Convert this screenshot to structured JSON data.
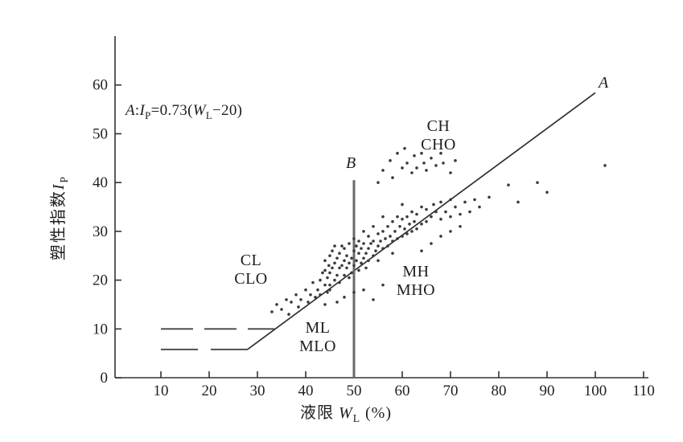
{
  "labels": {
    "equation_parts": [
      "A",
      ":",
      "I",
      "P",
      "=0.73(",
      "W",
      "L",
      "−20)"
    ],
    "a": "A",
    "b": "B",
    "zones_ch": [
      "CH",
      "CHO"
    ],
    "zones_cl": [
      "CL",
      "CLO"
    ],
    "zones_mh": [
      "MH",
      "MHO"
    ],
    "zones_ml": [
      "ML",
      "MLO"
    ],
    "xlabel": [
      "液限 ",
      "W",
      "L",
      " (%)"
    ],
    "ylabel": [
      "塑性指数",
      "I",
      "P"
    ]
  },
  "chart_data": {
    "type": "scatter",
    "title": "",
    "xlabel": "液限 WL (%)",
    "ylabel": "塑性指数 IP",
    "xlim": [
      0,
      115
    ],
    "ylim": [
      0,
      70
    ],
    "x_ticks": [
      10,
      20,
      30,
      40,
      50,
      60,
      70,
      80,
      90,
      100,
      110
    ],
    "y_ticks": [
      0,
      10,
      20,
      30,
      40,
      50,
      60
    ],
    "grid": false,
    "a_line": {
      "label": "A",
      "equation": "IP = 0.73 (WL - 20)",
      "slope": 0.73,
      "offset": 20,
      "wl_start": 28,
      "wl_end": 100
    },
    "b_line": {
      "label": "B",
      "wl": 50,
      "ip_bottom": 0,
      "ip_top": 40.5
    },
    "dashed_boundary": {
      "ip": 10,
      "wl_from": 10,
      "wl_to": 33.5
    },
    "lower_boundary": {
      "ip": 5.8,
      "wl_from": 10,
      "wl_to": 28
    },
    "zones": [
      {
        "label": "CH/CHO",
        "wl": 66,
        "ip": 49
      },
      {
        "label": "CL/CLO",
        "wl": 28,
        "ip": 22.5
      },
      {
        "label": "MH/MHO",
        "wl": 62,
        "ip": 20.5
      },
      {
        "label": "ML/MLO",
        "wl": 42,
        "ip": 9
      }
    ],
    "points": [
      [
        33,
        13.5
      ],
      [
        34,
        15
      ],
      [
        35,
        14
      ],
      [
        36,
        16
      ],
      [
        36.5,
        13
      ],
      [
        37,
        15.5
      ],
      [
        38,
        17
      ],
      [
        38.5,
        14.5
      ],
      [
        39,
        16
      ],
      [
        40,
        18
      ],
      [
        40.5,
        15.5
      ],
      [
        41,
        17
      ],
      [
        41.5,
        19.5
      ],
      [
        42,
        16.5
      ],
      [
        42.5,
        18
      ],
      [
        43,
        20
      ],
      [
        43,
        17
      ],
      [
        43.5,
        21.5
      ],
      [
        44,
        19
      ],
      [
        44,
        22
      ],
      [
        44,
        24
      ],
      [
        44.5,
        17.5
      ],
      [
        44.5,
        20.5
      ],
      [
        44.8,
        23
      ],
      [
        45,
        19
      ],
      [
        45,
        21.5
      ],
      [
        45,
        25
      ],
      [
        45,
        18
      ],
      [
        45.5,
        22.5
      ],
      [
        45.5,
        26
      ],
      [
        46,
        20
      ],
      [
        46,
        23.5
      ],
      [
        46,
        27
      ],
      [
        46.5,
        21
      ],
      [
        46.5,
        24.5
      ],
      [
        47,
        19.5
      ],
      [
        47,
        22.5
      ],
      [
        47,
        25.5
      ],
      [
        47.5,
        23
      ],
      [
        47.5,
        27
      ],
      [
        48,
        21
      ],
      [
        48,
        24
      ],
      [
        48,
        26.5
      ],
      [
        48.5,
        22.5
      ],
      [
        48.5,
        25
      ],
      [
        49,
        20.5
      ],
      [
        49,
        23.5
      ],
      [
        49,
        27.5
      ],
      [
        49.5,
        24.5
      ],
      [
        49.5,
        21.5
      ],
      [
        50,
        23
      ],
      [
        50,
        26
      ],
      [
        50,
        28.5
      ],
      [
        50.5,
        24
      ],
      [
        50.5,
        27
      ],
      [
        51,
        22
      ],
      [
        51,
        25.5
      ],
      [
        51,
        28
      ],
      [
        51.5,
        23.5
      ],
      [
        51.5,
        26.5
      ],
      [
        52,
        24.5
      ],
      [
        52,
        27.5
      ],
      [
        52,
        30
      ],
      [
        52.5,
        25.5
      ],
      [
        52.5,
        22.5
      ],
      [
        53,
        26.5
      ],
      [
        53,
        24
      ],
      [
        53,
        29
      ],
      [
        53.5,
        27.5
      ],
      [
        54,
        25
      ],
      [
        54,
        28
      ],
      [
        54,
        31
      ],
      [
        54.5,
        26
      ],
      [
        55,
        27
      ],
      [
        55,
        29.5
      ],
      [
        55,
        24
      ],
      [
        55.5,
        28
      ],
      [
        56,
        26.5
      ],
      [
        56,
        30
      ],
      [
        56,
        33
      ],
      [
        56.5,
        28.5
      ],
      [
        57,
        27
      ],
      [
        57,
        31
      ],
      [
        57.5,
        29
      ],
      [
        58,
        28
      ],
      [
        58,
        32
      ],
      [
        58,
        25.5
      ],
      [
        58.5,
        30
      ],
      [
        59,
        28.5
      ],
      [
        59,
        33
      ],
      [
        59.5,
        31
      ],
      [
        60,
        29
      ],
      [
        60,
        32.5
      ],
      [
        60,
        35.5
      ],
      [
        60.5,
        30.5
      ],
      [
        61,
        29.5
      ],
      [
        61,
        33
      ],
      [
        61.5,
        31.5
      ],
      [
        62,
        30
      ],
      [
        62,
        34
      ],
      [
        62.5,
        32
      ],
      [
        63,
        30.5
      ],
      [
        63,
        33.5
      ],
      [
        64,
        31.5
      ],
      [
        64,
        35
      ],
      [
        64,
        26
      ],
      [
        65,
        32
      ],
      [
        65,
        34.5
      ],
      [
        66,
        33
      ],
      [
        66,
        27.5
      ],
      [
        66.5,
        35.5
      ],
      [
        67,
        34
      ],
      [
        68,
        32.5
      ],
      [
        68,
        36
      ],
      [
        68,
        29
      ],
      [
        69,
        34
      ],
      [
        70,
        33
      ],
      [
        70,
        36.5
      ],
      [
        70,
        30
      ],
      [
        71,
        35
      ],
      [
        72,
        33.5
      ],
      [
        72,
        31
      ],
      [
        73,
        36
      ],
      [
        74,
        34
      ],
      [
        75,
        36.5
      ],
      [
        76,
        35
      ],
      [
        78,
        37
      ],
      [
        55,
        40
      ],
      [
        56,
        42.5
      ],
      [
        57.5,
        44.5
      ],
      [
        58,
        41
      ],
      [
        59,
        46
      ],
      [
        60,
        43
      ],
      [
        60.5,
        47
      ],
      [
        61,
        44
      ],
      [
        62,
        42
      ],
      [
        62.5,
        45.5
      ],
      [
        63,
        43
      ],
      [
        64,
        46
      ],
      [
        64.5,
        44
      ],
      [
        65,
        42.5
      ],
      [
        66,
        45
      ],
      [
        67,
        43.5
      ],
      [
        68,
        46
      ],
      [
        68.5,
        44
      ],
      [
        70,
        42
      ],
      [
        71,
        44.5
      ],
      [
        46.5,
        15.5
      ],
      [
        48,
        16.5
      ],
      [
        50,
        17.5
      ],
      [
        52,
        18
      ],
      [
        54,
        16
      ],
      [
        56,
        19
      ],
      [
        44,
        15
      ],
      [
        82,
        39.5
      ],
      [
        84,
        36
      ],
      [
        88,
        40
      ],
      [
        90,
        38
      ],
      [
        102,
        43.5
      ]
    ]
  }
}
